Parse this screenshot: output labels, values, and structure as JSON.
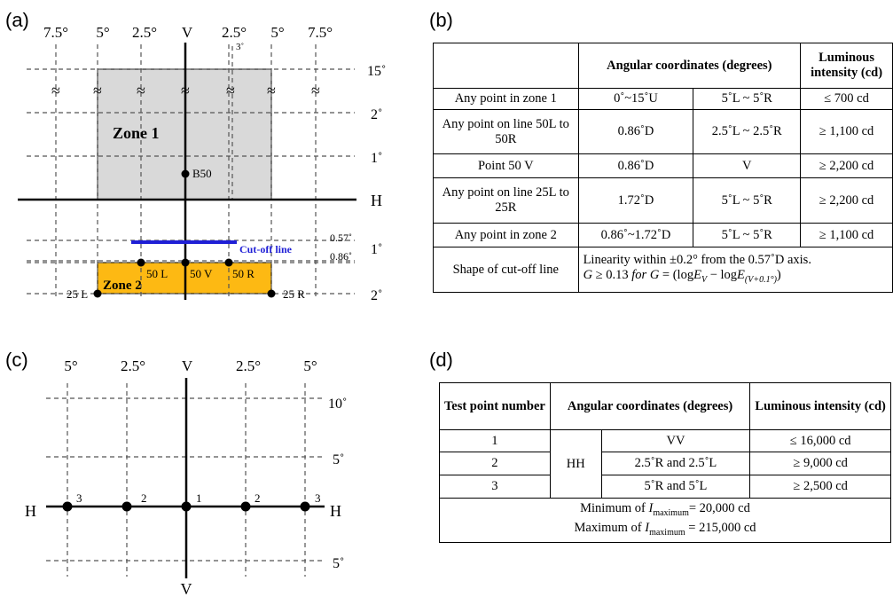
{
  "panels": {
    "a": "(a)",
    "b": "(b)",
    "c": "(c)",
    "d": "(d)"
  },
  "diagram_a": {
    "top_labels": [
      "7.5°",
      "5°",
      "2.5°",
      "V",
      "2.5°",
      "5°",
      "7.5°"
    ],
    "small_3": "3˚",
    "right_labels": [
      "15˚",
      "2˚",
      "1˚",
      "H",
      "0.57˚",
      "0.86˚",
      "1˚",
      "2˚"
    ],
    "break_mark": "≈",
    "zone1": "Zone 1",
    "zone2": "Zone 2",
    "b50": "B50",
    "cutoff": "Cut-off line",
    "points": [
      "50 L",
      "50 V",
      "50 R",
      "25 L",
      "25 R"
    ],
    "colors": {
      "zone1": "#d9d9d9",
      "zone2": "#fdb913",
      "cutoff": "#1f1fd6"
    }
  },
  "diagram_c": {
    "top_labels": [
      "5°",
      "2.5°",
      "V",
      "2.5°",
      "5°"
    ],
    "right_labels": [
      "10˚",
      "5˚",
      "5˚"
    ],
    "h_left": "H",
    "h_right": "H",
    "v_bottom": "V",
    "point_nums": [
      "3",
      "2",
      "1",
      "2",
      "3"
    ]
  },
  "table_b": {
    "header": {
      "coords": "Angular coordinates (degrees)",
      "intensity": "Luminous intensity (cd)"
    },
    "rows": [
      {
        "label": "Any point in zone 1",
        "c1": "0˚~15˚U",
        "c2": "5˚L ~ 5˚R",
        "value": "≤ 700 cd"
      },
      {
        "label": "Any point on line 50L to 50R",
        "c1": "0.86˚D",
        "c2": "2.5˚L ~ 2.5˚R",
        "value": "≥ 1,100 cd"
      },
      {
        "label": "Point 50 V",
        "c1": "0.86˚D",
        "c2": "V",
        "value": "≥ 2,200 cd"
      },
      {
        "label": "Any point on line 25L to 25R",
        "c1": "1.72˚D",
        "c2": "5˚L ~ 5˚R",
        "value": "≥ 2,200 cd"
      },
      {
        "label": "Any point in zone 2",
        "c1": "0.86˚~1.72˚D",
        "c2": "5˚L ~ 5˚R",
        "value": "≥ 1,100 cd"
      }
    ],
    "shape_label": "Shape of cut-off line",
    "shape_line1": "Linearity within ±0.2° from the 0.57˚D axis.",
    "shape_G": "G",
    "shape_cond": "≥ 0.13",
    "shape_for": "for",
    "shape_G2": "G",
    "shape_eq": "= (log",
    "shape_E1": "E",
    "shape_sub1": "V",
    "shape_minus": "− log",
    "shape_E2": "E",
    "shape_sub2": "(V+0.1°)",
    "shape_close": ")"
  },
  "table_d": {
    "header": {
      "num": "Test point number",
      "coords": "Angular coordinates (degrees)",
      "intensity": "Luminous intensity (cd)"
    },
    "hh": "HH",
    "rows": [
      {
        "num": "1",
        "coord": "VV",
        "value": "≤ 16,000 cd"
      },
      {
        "num": "2",
        "coord": "2.5˚R and 2.5˚L",
        "value": "≥ 9,000 cd"
      },
      {
        "num": "3",
        "coord": "5˚R and 5˚L",
        "value": "≥ 2,500 cd"
      }
    ],
    "footer1_pre": "Minimum of ",
    "footer1_I": "I",
    "footer1_sub": "maximum",
    "footer1_post": "= 20,000 cd",
    "footer2_pre": "Maximum of ",
    "footer2_I": "I",
    "footer2_sub": "maximum",
    "footer2_post": " = 215,000 cd"
  }
}
